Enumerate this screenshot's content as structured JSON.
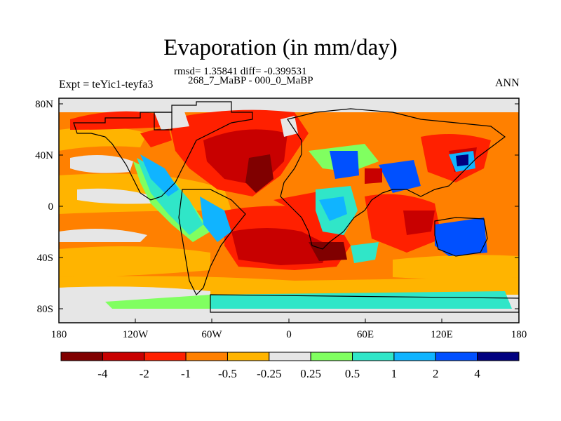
{
  "title": "Evaporation (in mm/day)",
  "subtitle_line1": "rmsd= 1.35841 diff= -0.399531",
  "subtitle_line2": "268_7_MaBP - 000_0_MaBP",
  "left_label": "Expt = teYic1-teyfa3",
  "right_label": "ANN",
  "colors": {
    "levels": [
      "#800000",
      "#c80000",
      "#ff2000",
      "#ff8000",
      "#ffb400",
      "#e6e6e6",
      "#80ff60",
      "#30e6c8",
      "#10b4ff",
      "#0050ff",
      "#000080"
    ]
  },
  "chart_data": {
    "type": "heatmap",
    "title": "Evaporation (in mm/day)",
    "field": "difference",
    "x_range": [
      -180,
      180
    ],
    "y_range": [
      -90,
      90
    ],
    "x_ticks": [
      "180",
      "120W",
      "60W",
      "0",
      "60E",
      "120E",
      "180"
    ],
    "y_ticks": [
      "80N",
      "40N",
      "0",
      "40S",
      "80S"
    ],
    "colorbar_labels": [
      "-4",
      "-2",
      "-1",
      "-0.5",
      "-0.25",
      "0.25",
      "0.5",
      "1",
      "2",
      "4"
    ]
  }
}
